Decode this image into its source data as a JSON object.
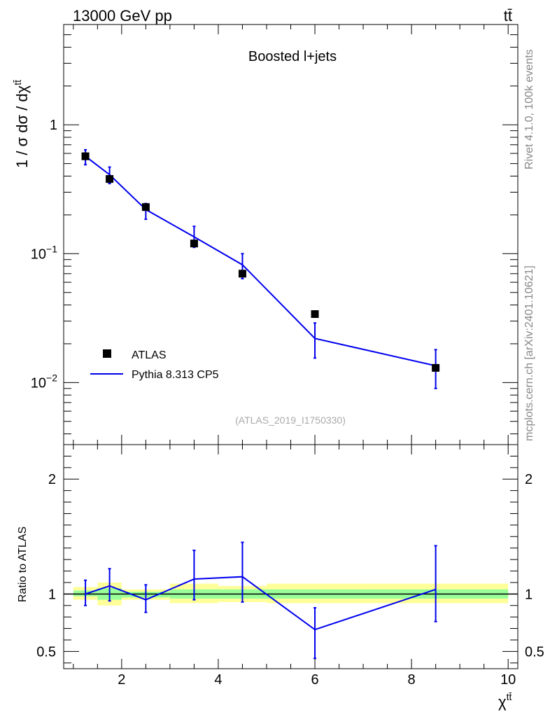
{
  "header": {
    "energy_label": "13000 GeV pp",
    "process_label": "tt̄"
  },
  "side_labels": {
    "rivet": "Rivet 4.1.0,  100k events",
    "mcplots": "mcplots.cern.ch [arXiv:2401.10621]"
  },
  "chart_data": [
    {
      "type": "scatter",
      "panel": "main",
      "title": "Boosted l+jets",
      "watermark": "(ATLAS_2019_I1750330)",
      "ylabel": "1 / σ dσ / dχ^tt̄",
      "yscale": "log",
      "xlim": [
        0.8,
        10.2
      ],
      "ylim": [
        0.0033,
        6.0
      ],
      "y_ticks": [
        {
          "value": 1,
          "label": "1"
        },
        {
          "value": 0.1,
          "label": "10",
          "exp": "−1"
        },
        {
          "value": 0.01,
          "label": "10",
          "exp": "−2"
        }
      ],
      "legend": [
        "ATLAS",
        "Pythia 8.313 CP5"
      ],
      "series": [
        {
          "name": "ATLAS",
          "style": "black-square-markers",
          "x": [
            1.25,
            1.75,
            2.5,
            3.5,
            4.5,
            6.0,
            8.5
          ],
          "y": [
            0.57,
            0.38,
            0.23,
            0.12,
            0.07,
            0.034,
            0.013
          ]
        },
        {
          "name": "Pythia 8.313 CP5",
          "style": "blue-line-with-errorbars",
          "x": [
            1.25,
            1.75,
            2.5,
            3.5,
            4.5,
            6.0,
            8.5
          ],
          "y": [
            0.57,
            0.41,
            0.22,
            0.135,
            0.082,
            0.022,
            0.0135
          ],
          "err_low": [
            0.49,
            0.35,
            0.185,
            0.112,
            0.064,
            0.0155,
            0.009
          ],
          "err_high": [
            0.64,
            0.47,
            0.245,
            0.163,
            0.1,
            0.029,
            0.018
          ]
        }
      ]
    },
    {
      "type": "line",
      "panel": "ratio",
      "ylabel": "Ratio to ATLAS",
      "xlabel": "χ^tt̄",
      "xlim": [
        0.8,
        10.2
      ],
      "ylim": [
        0.35,
        2.3
      ],
      "x_ticks": [
        2,
        4,
        6,
        8,
        10
      ],
      "y_ticks": [
        0.5,
        1,
        2
      ],
      "bins": [
        {
          "x0": 1.0,
          "x1": 1.5,
          "band_syst": [
            0.95,
            1.06
          ],
          "band_stat": [
            0.98,
            1.03
          ]
        },
        {
          "x0": 1.5,
          "x1": 2.0,
          "band_syst": [
            0.9,
            1.1
          ],
          "band_stat": [
            0.95,
            1.05
          ]
        },
        {
          "x0": 2.0,
          "x1": 3.0,
          "band_syst": [
            0.95,
            1.04
          ],
          "band_stat": [
            0.97,
            1.02
          ]
        },
        {
          "x0": 3.0,
          "x1": 4.0,
          "band_syst": [
            0.92,
            1.09
          ],
          "band_stat": [
            0.96,
            1.04
          ]
        },
        {
          "x0": 4.0,
          "x1": 5.0,
          "band_syst": [
            0.93,
            1.07
          ],
          "band_stat": [
            0.96,
            1.04
          ]
        },
        {
          "x0": 5.0,
          "x1": 7.0,
          "band_syst": [
            0.92,
            1.09
          ],
          "band_stat": [
            0.96,
            1.04
          ]
        },
        {
          "x0": 7.0,
          "x1": 10.0,
          "band_syst": [
            0.92,
            1.09
          ],
          "band_stat": [
            0.96,
            1.04
          ]
        }
      ],
      "series": [
        {
          "name": "Pythia 8.313 CP5 / ATLAS",
          "x": [
            1.25,
            1.75,
            2.5,
            3.5,
            4.5,
            6.0,
            8.5
          ],
          "y": [
            1.0,
            1.07,
            0.95,
            1.13,
            1.15,
            0.69,
            1.04
          ],
          "err_low": [
            0.9,
            0.94,
            0.84,
            0.95,
            0.93,
            0.44,
            0.76
          ],
          "err_high": [
            1.12,
            1.22,
            1.08,
            1.38,
            1.45,
            0.88,
            1.42
          ]
        }
      ],
      "colors": {
        "stat": "#99ff99",
        "syst": "#ffff99",
        "mc": "#0000ee"
      }
    }
  ]
}
